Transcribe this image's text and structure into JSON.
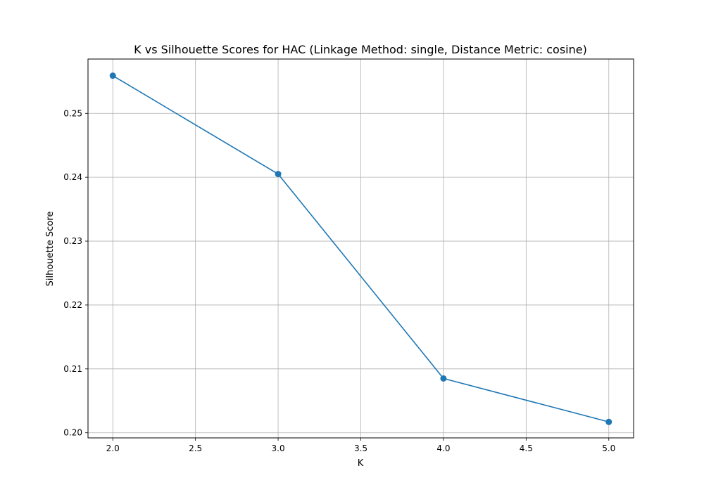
{
  "chart_data": {
    "type": "line",
    "title": "K vs Silhouette Scores for HAC (Linkage Method: single, Distance Metric: cosine)",
    "xlabel": "K",
    "ylabel": "Silhouette Score",
    "x": [
      2,
      3,
      4,
      5
    ],
    "series": [
      {
        "values": [
          0.2559,
          0.2405,
          0.2085,
          0.2017
        ]
      }
    ],
    "xlim": [
      1.85,
      5.15
    ],
    "ylim": [
      0.1992,
      0.2585
    ],
    "xticks": [
      2.0,
      2.5,
      3.0,
      3.5,
      4.0,
      4.5,
      5.0
    ],
    "xtick_labels": [
      "2.0",
      "2.5",
      "3.0",
      "3.5",
      "4.0",
      "4.5",
      "5.0"
    ],
    "yticks": [
      0.2,
      0.21,
      0.22,
      0.23,
      0.24,
      0.25
    ],
    "ytick_labels": [
      "0.20",
      "0.21",
      "0.22",
      "0.23",
      "0.24",
      "0.25"
    ],
    "grid": true,
    "marker": "circle",
    "line_color": "#1f77b4",
    "grid_color": "#b0b0b0"
  }
}
